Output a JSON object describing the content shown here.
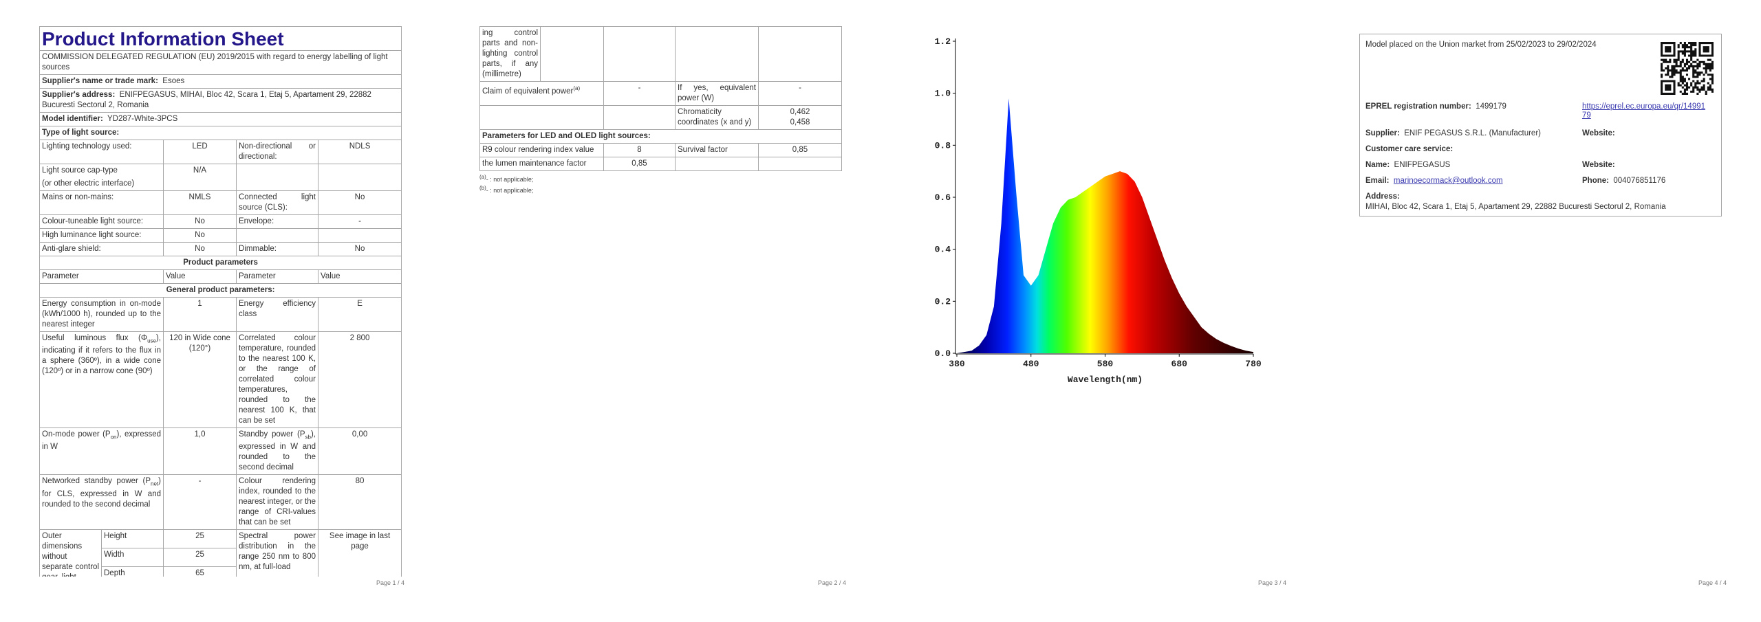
{
  "page1": {
    "title": "Product Information Sheet",
    "regulation": "COMMISSION DELEGATED REGULATION (EU) 2019/2015 with regard to energy labelling of light sources",
    "supplier_name": {
      "label": "Supplier's name or trade mark:",
      "value": "Esoes"
    },
    "supplier_address": {
      "label": "Supplier's address:",
      "value": "ENIFPEGASUS, MIHAI, Bloc 42, Scara 1, Etaj 5, Apartament 29, 22882 Bucuresti Sectorul 2, Romania"
    },
    "model": {
      "label": "Model identifier:",
      "value": "YD287-White-3PCS"
    },
    "type_heading": "Type of light source:",
    "type_rows": [
      [
        "Lighting technology used:",
        "LED",
        "Non-directional or directional:",
        "NDLS"
      ],
      [
        "Light source cap-type",
        "(or other electric interface)",
        "N/A"
      ],
      [
        "Mains or non-mains:",
        "NMLS",
        "Connected light source (CLS):",
        "No"
      ],
      [
        "Colour-tuneable light source:",
        "No",
        "Envelope:",
        "-"
      ],
      [
        "High luminance light source:",
        "No"
      ],
      [
        "Anti-glare shield:",
        "No",
        "Dimmable:",
        "No"
      ]
    ],
    "product_parameters": "Product parameters",
    "header": [
      "Parameter",
      "Value",
      "Parameter",
      "Value"
    ],
    "general": "General product parameters:",
    "params": [
      [
        "Energy consumption in on-mode (kWh/1000 h), rounded up to the nearest integer",
        "1",
        "Energy efficiency class",
        "E"
      ],
      [
        [
          "Useful luminous flux (Φ",
          "use",
          "), indicating if it refers to the flux in a sphere (360º), in a wide cone (120º) or in a narrow cone (90º)"
        ],
        "120 in Wide cone (120°)",
        "Correlated colour temperature, rounded to the nearest 100 K, or the range of correlated colour temperatures, rounded to the nearest 100 K, that can be set",
        "2 800"
      ],
      [
        [
          "On-mode power (P",
          "on",
          "), expressed in W"
        ],
        "1,0",
        [
          "Standby power (P",
          "sb",
          "), expressed in W and rounded to the second decimal"
        ],
        "0,00"
      ],
      [
        [
          "Networked standby power (P",
          "net",
          ") for CLS, expressed in W and rounded to the second decimal"
        ],
        "-",
        "Colour rendering index, rounded to the nearest integer, or the range of CRI-values that can be set",
        "80"
      ]
    ],
    "dimensions": {
      "label": "Outer dimensions without separate control gear, light-",
      "rows": [
        [
          "Height",
          "25"
        ],
        [
          "Width",
          "25"
        ],
        [
          "Depth",
          "65"
        ]
      ],
      "spectral": "Spectral power distribution in the range 250 nm to 800 nm, at full-load",
      "spectral_value": "See image in last page"
    },
    "footer": "Page 1 / 4"
  },
  "page2": {
    "continuation": "ing control parts and non-lighting control parts, if any (millimetre)",
    "claim": [
      "Claim of equivalent power",
      "(a)",
      "-",
      "If yes, equivalent power (W)",
      "-"
    ],
    "chromaticity": [
      "Chromaticity coordinates (x and y)",
      "0,462",
      "0,458"
    ],
    "led_heading": "Parameters for LED and OLED light sources:",
    "led_rows": [
      [
        "R9 colour rendering index value",
        "8",
        "Survival factor",
        "0,85"
      ],
      [
        "the lumen maintenance factor",
        "0,85"
      ]
    ],
    "footnotes": [
      [
        "(a)",
        "- : not applicable;"
      ],
      [
        "(b)",
        "- : not applicable;"
      ]
    ],
    "footer": "Page 2 / 4"
  },
  "chart_data": {
    "type": "area",
    "x": [
      380,
      390,
      400,
      410,
      420,
      430,
      440,
      450,
      460,
      470,
      480,
      490,
      500,
      510,
      520,
      530,
      540,
      550,
      560,
      570,
      580,
      590,
      600,
      610,
      620,
      630,
      640,
      650,
      660,
      670,
      680,
      690,
      700,
      710,
      720,
      730,
      740,
      750,
      760,
      770,
      780
    ],
    "values": [
      0,
      0.005,
      0.01,
      0.03,
      0.07,
      0.18,
      0.5,
      0.98,
      0.62,
      0.3,
      0.26,
      0.3,
      0.4,
      0.5,
      0.56,
      0.59,
      0.6,
      0.62,
      0.64,
      0.66,
      0.68,
      0.69,
      0.7,
      0.69,
      0.66,
      0.6,
      0.52,
      0.44,
      0.36,
      0.29,
      0.23,
      0.18,
      0.14,
      0.1,
      0.075,
      0.055,
      0.04,
      0.028,
      0.018,
      0.01,
      0.005
    ],
    "xlim": [
      380,
      780
    ],
    "ylim": [
      0,
      1.2
    ],
    "xticks": [
      380,
      480,
      580,
      680,
      780
    ],
    "yticks": [
      {
        "value": 0,
        "label": "0.0"
      },
      0.2,
      0.4,
      0.6,
      0.8,
      {
        "value": 1,
        "label": "1.0"
      },
      1.2
    ],
    "xlabel": "Wavelength(nm)"
  },
  "page3": {
    "footer": "Page 3 / 4"
  },
  "page4": {
    "market": "Model placed on the Union market from 25/02/2023 to 29/02/2024",
    "eprel": {
      "label": "EPREL registration number:",
      "value": "1499179",
      "link": "https://eprel.ec.europa.eu/qr/1499179"
    },
    "supplier": {
      "label": "Supplier:",
      "value": "ENIF PEGASUS S.R.L. (Manufacturer)"
    },
    "supplier_website": {
      "label": "Website:"
    },
    "customer_care": "Customer care service:",
    "name": {
      "label": "Name:",
      "value": "ENIFPEGASUS"
    },
    "website": {
      "label": "Website:"
    },
    "email": {
      "label": "Email:",
      "value": "marinoecormack@outlook.com"
    },
    "phone": {
      "label": "Phone:",
      "value": "004076851176"
    },
    "address": {
      "label": "Address:",
      "value": "MIHAI, Bloc 42, Scara 1, Etaj 5, Apartament 29, 22882 Bucuresti Sectorul 2, Romania"
    },
    "footer": "Page 4 / 4"
  }
}
